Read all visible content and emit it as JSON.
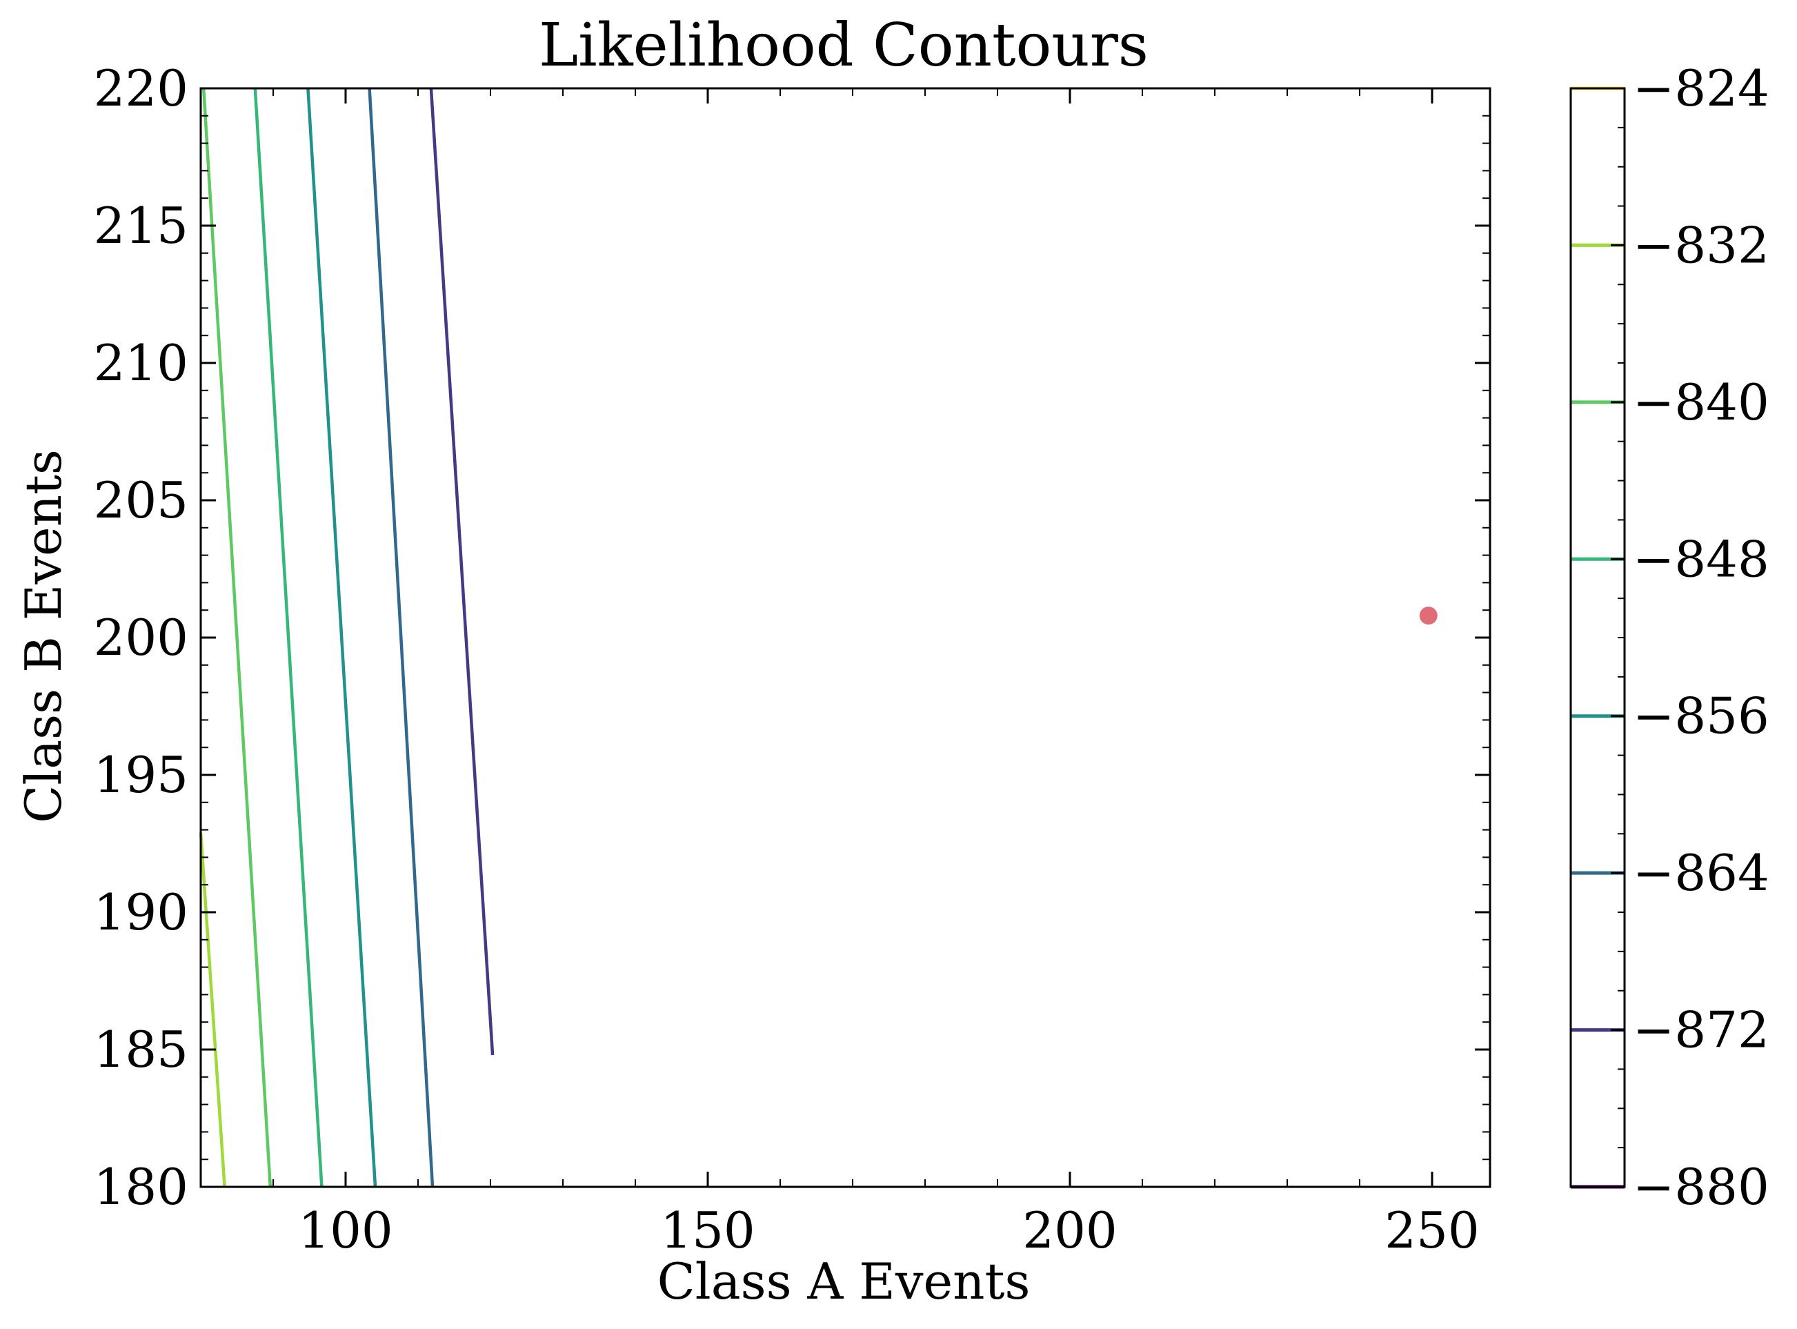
{
  "chart_data": {
    "type": "contour",
    "title": "Likelihood Contours",
    "xlabel": "Class A Events",
    "ylabel": "Class B Events",
    "xlim": [
      80,
      258
    ],
    "ylim": [
      180,
      220
    ],
    "xticks": [
      100,
      150,
      200,
      250
    ],
    "xtick_labels": [
      "100",
      "150",
      "200",
      "250"
    ],
    "yticks": [
      180,
      185,
      190,
      195,
      200,
      205,
      210,
      215,
      220
    ],
    "ytick_labels": [
      "180",
      "185",
      "190",
      "195",
      "200",
      "205",
      "210",
      "215",
      "220"
    ],
    "grid": false,
    "levels": [
      {
        "value": -880,
        "label": "−880",
        "color": "#440154"
      },
      {
        "value": -872,
        "label": "−872",
        "color": "#443983"
      },
      {
        "value": -864,
        "label": "−864",
        "color": "#31688e"
      },
      {
        "value": -856,
        "label": "−856",
        "color": "#21918c"
      },
      {
        "value": -848,
        "label": "−848",
        "color": "#35b779"
      },
      {
        "value": -840,
        "label": "−840",
        "color": "#5ec962"
      },
      {
        "value": -832,
        "label": "−832",
        "color": "#a0da39"
      },
      {
        "value": -824,
        "label": "−824",
        "color": "#fde725"
      }
    ],
    "contours": [
      {
        "level": -872,
        "x": [
          111.8,
          120.3
        ],
        "y": [
          220,
          184.8
        ]
      },
      {
        "level": -864,
        "x": [
          103.3,
          112.0
        ],
        "y": [
          220,
          180
        ]
      },
      {
        "level": -856,
        "x": [
          94.8,
          104.1
        ],
        "y": [
          220,
          180
        ]
      },
      {
        "level": -848,
        "x": [
          87.5,
          96.7
        ],
        "y": [
          220,
          180
        ]
      },
      {
        "level": -840,
        "x": [
          80.4,
          89.6
        ],
        "y": [
          220,
          180
        ]
      },
      {
        "level": -832,
        "x": [
          80.0,
          83.3
        ],
        "y": [
          192.9,
          180
        ]
      }
    ],
    "marker": {
      "x": 249.5,
      "y": 200.8,
      "color": "#e06c78"
    }
  }
}
